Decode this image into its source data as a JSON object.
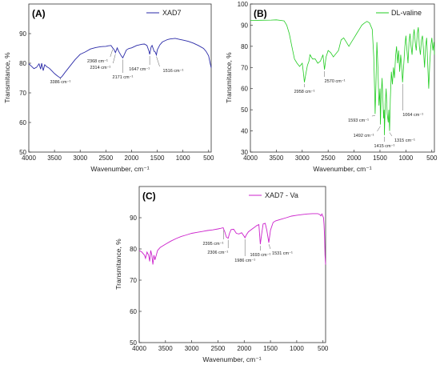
{
  "chart_data": [
    {
      "type": "line",
      "panel_label": "(A)",
      "xlabel": "Wavenumber, cm⁻¹",
      "ylabel": "Transmitance, %",
      "xlim": [
        4000,
        450
      ],
      "ylim": [
        50,
        100
      ],
      "x_ticks": [
        4000,
        3500,
        3000,
        2500,
        2000,
        1500,
        1000,
        500
      ],
      "y_ticks": [
        50,
        60,
        70,
        80,
        90
      ],
      "legend": "top-right",
      "series": [
        {
          "name": "XAD7",
          "color": "#2a2aa8",
          "x": [
            4000,
            3950,
            3900,
            3850,
            3800,
            3770,
            3750,
            3720,
            3690,
            3650,
            3600,
            3550,
            3500,
            3450,
            3400,
            3386,
            3350,
            3300,
            3200,
            3100,
            3000,
            2950,
            2900,
            2800,
            2700,
            2600,
            2500,
            2450,
            2400,
            2368,
            2340,
            2314,
            2280,
            2250,
            2200,
            2171,
            2140,
            2100,
            2050,
            2000,
            1950,
            1900,
            1850,
            1800,
            1750,
            1700,
            1680,
            1660,
            1647,
            1620,
            1600,
            1580,
            1560,
            1540,
            1516,
            1500,
            1450,
            1400,
            1350,
            1300,
            1250,
            1200,
            1150,
            1100,
            1050,
            1000,
            900,
            800,
            700,
            600,
            550,
            500,
            470,
            450
          ],
          "y": [
            79.8,
            79.0,
            78.2,
            78.6,
            79.8,
            78.0,
            80.0,
            77.5,
            79.5,
            78.8,
            78.3,
            77.4,
            76.5,
            75.8,
            75.2,
            75.0,
            75.6,
            76.8,
            79.0,
            81.2,
            83.0,
            83.4,
            83.8,
            84.8,
            85.3,
            85.6,
            85.7,
            85.9,
            86.0,
            85.2,
            84.6,
            83.6,
            85.2,
            84.0,
            82.5,
            81.8,
            83.0,
            84.5,
            85.0,
            85.2,
            85.6,
            86.0,
            86.2,
            86.4,
            86.5,
            86.0,
            85.0,
            84.0,
            83.0,
            85.5,
            86.0,
            85.0,
            84.0,
            83.8,
            82.8,
            84.5,
            86.2,
            87.2,
            87.6,
            88.0,
            88.2,
            88.3,
            88.4,
            88.2,
            88.0,
            87.8,
            87.4,
            86.8,
            86.0,
            85.0,
            84.0,
            82.5,
            80.0,
            78.5
          ]
        }
      ],
      "annotations": [
        {
          "text": "2368 cm⁻¹",
          "x": 2368
        },
        {
          "text": "2314 cm⁻¹",
          "x": 2314
        },
        {
          "text": "2171 cm⁻¹",
          "x": 2171
        },
        {
          "text": "1647 cm⁻¹",
          "x": 1647
        },
        {
          "text": "1516 cm⁻¹",
          "x": 1516
        },
        {
          "text": "3386 cm⁻¹",
          "x": 3386
        }
      ]
    },
    {
      "type": "line",
      "panel_label": "(B)",
      "xlabel": "Wavenumber, cm⁻¹",
      "ylabel": "Transmitance, %",
      "xlim": [
        4000,
        450
      ],
      "ylim": [
        30,
        100
      ],
      "x_ticks": [
        4000,
        3500,
        3000,
        2500,
        2000,
        1500,
        1000,
        500
      ],
      "y_ticks": [
        30,
        40,
        50,
        60,
        70,
        80,
        90,
        100
      ],
      "legend": "top-right",
      "series": [
        {
          "name": "DL-valine",
          "color": "#22cc22",
          "x": [
            4000,
            3800,
            3600,
            3500,
            3400,
            3350,
            3300,
            3250,
            3200,
            3150,
            3100,
            3050,
            3000,
            2980,
            2958,
            2930,
            2900,
            2870,
            2850,
            2800,
            2750,
            2700,
            2650,
            2600,
            2570,
            2540,
            2500,
            2450,
            2400,
            2300,
            2250,
            2200,
            2150,
            2100,
            2050,
            2000,
            1950,
            1900,
            1850,
            1800,
            1750,
            1700,
            1650,
            1620,
            1600,
            1593,
            1580,
            1560,
            1540,
            1520,
            1500,
            1492,
            1480,
            1460,
            1440,
            1430,
            1420,
            1415,
            1400,
            1380,
            1360,
            1340,
            1330,
            1315,
            1300,
            1280,
            1260,
            1240,
            1220,
            1200,
            1180,
            1160,
            1140,
            1120,
            1100,
            1080,
            1064,
            1040,
            1020,
            1000,
            980,
            960,
            940,
            920,
            900,
            880,
            860,
            840,
            820,
            800,
            780,
            760,
            740,
            720,
            700,
            680,
            660,
            640,
            620,
            600,
            580,
            560,
            540,
            520,
            500,
            480,
            460,
            450
          ],
          "y": [
            92.2,
            92.3,
            92.4,
            92.5,
            92.2,
            92.0,
            90.0,
            86.0,
            80.0,
            74.0,
            72.0,
            70.5,
            72.0,
            68.0,
            63.0,
            67.0,
            71.0,
            73.0,
            76.0,
            74.0,
            74.0,
            72.0,
            73.0,
            76.0,
            69.0,
            75.0,
            78.0,
            77.0,
            75.0,
            78.0,
            83.0,
            84.0,
            82.0,
            80.0,
            82.0,
            84.0,
            86.0,
            88.0,
            90.0,
            91.0,
            91.8,
            91.0,
            88.0,
            75.0,
            56.0,
            48.0,
            60.0,
            82.0,
            70.0,
            52.0,
            60.0,
            43.0,
            55.0,
            65.0,
            52.0,
            46.0,
            50.0,
            38.0,
            52.0,
            60.0,
            48.0,
            44.0,
            50.0,
            40.0,
            55.0,
            68.0,
            62.0,
            70.0,
            65.0,
            75.0,
            80.0,
            72.0,
            78.0,
            68.0,
            76.0,
            70.0,
            63.0,
            72.0,
            80.0,
            85.0,
            78.0,
            72.0,
            82.0,
            86.0,
            80.0,
            76.0,
            84.0,
            88.0,
            82.0,
            78.0,
            86.0,
            89.0,
            80.0,
            76.0,
            83.0,
            85.0,
            78.0,
            70.0,
            80.0,
            84.0,
            72.0,
            60.0,
            72.0,
            80.0,
            84.0,
            78.0,
            82.0,
            76.0
          ]
        }
      ],
      "annotations": [
        {
          "text": "2958 cm⁻¹",
          "x": 2958
        },
        {
          "text": "2570 cm⁻¹",
          "x": 2570
        },
        {
          "text": "1593 cm⁻¹",
          "x": 1593
        },
        {
          "text": "1492 cm⁻¹",
          "x": 1492
        },
        {
          "text": "1415 cm⁻¹",
          "x": 1415
        },
        {
          "text": "1315 cm⁻¹",
          "x": 1315
        },
        {
          "text": "1064 cm⁻¹",
          "x": 1064
        }
      ]
    },
    {
      "type": "line",
      "panel_label": "(C)",
      "xlabel": "Wavenumber, cm⁻¹",
      "ylabel": "Transmitance, %",
      "xlim": [
        4000,
        450
      ],
      "ylim": [
        50,
        100
      ],
      "x_ticks": [
        4000,
        3500,
        3000,
        2500,
        2000,
        1500,
        1000,
        500
      ],
      "y_ticks": [
        50,
        60,
        70,
        80,
        90
      ],
      "legend": "top-right",
      "series": [
        {
          "name": "XAD7 - Va",
          "color": "#cc22cc",
          "x": [
            4000,
            3950,
            3900,
            3880,
            3850,
            3820,
            3800,
            3780,
            3760,
            3740,
            3720,
            3700,
            3650,
            3600,
            3500,
            3400,
            3300,
            3200,
            3100,
            3000,
            2900,
            2800,
            2700,
            2600,
            2500,
            2450,
            2400,
            2395,
            2370,
            2340,
            2306,
            2280,
            2250,
            2200,
            2150,
            2100,
            2050,
            2000,
            1986,
            1960,
            1920,
            1880,
            1840,
            1800,
            1760,
            1720,
            1693,
            1670,
            1640,
            1600,
            1570,
            1550,
            1531,
            1500,
            1450,
            1400,
            1300,
            1200,
            1100,
            1000,
            900,
            800,
            700,
            600,
            560,
            540,
            520,
            500,
            490,
            480,
            470,
            460,
            450
          ],
          "y": [
            79.5,
            79.0,
            78.0,
            77.0,
            79.0,
            78.0,
            76.0,
            79.5,
            78.0,
            75.0,
            78.0,
            76.5,
            79.5,
            80.5,
            81.5,
            82.5,
            83.3,
            84.0,
            84.5,
            85.0,
            85.3,
            85.6,
            85.9,
            86.1,
            86.4,
            86.6,
            86.8,
            86.5,
            85.5,
            83.8,
            83.4,
            85.0,
            86.2,
            86.3,
            85.0,
            84.8,
            85.2,
            84.0,
            83.6,
            84.5,
            85.5,
            86.0,
            86.5,
            87.0,
            87.5,
            87.8,
            81.5,
            84.5,
            88.0,
            88.2,
            86.0,
            84.0,
            82.0,
            86.0,
            88.5,
            89.0,
            89.5,
            90.0,
            90.5,
            90.8,
            91.0,
            91.2,
            91.3,
            91.3,
            91.0,
            90.6,
            91.2,
            90.4,
            90.0,
            88.0,
            84.0,
            78.0,
            75.0
          ]
        }
      ],
      "annotations": [
        {
          "text": "2395 cm⁻¹",
          "x": 2395
        },
        {
          "text": "2306 cm⁻¹",
          "x": 2306
        },
        {
          "text": "1986 cm⁻¹",
          "x": 1986
        },
        {
          "text": "1693 cm⁻¹",
          "x": 1693
        },
        {
          "text": "1531 cm⁻¹",
          "x": 1531
        }
      ]
    }
  ]
}
